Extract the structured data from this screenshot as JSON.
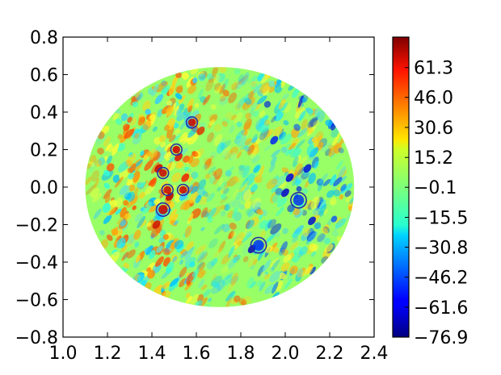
{
  "chart_data": {
    "type": "heatmap",
    "title": "",
    "xlabel": "",
    "ylabel": "",
    "xlim": [
      1.0,
      2.4
    ],
    "ylim": [
      -0.8,
      0.8
    ],
    "grid": false,
    "x_ticks": [
      "1.0",
      "1.2",
      "1.4",
      "1.6",
      "1.8",
      "2.0",
      "2.2",
      "2.4"
    ],
    "y_ticks": [
      "0.8",
      "0.6",
      "0.4",
      "0.2",
      "0.0",
      "−0.2",
      "−0.4",
      "−0.6",
      "−0.8"
    ],
    "x_tick_values": [
      1.0,
      1.2,
      1.4,
      1.6,
      1.8,
      2.0,
      2.2,
      2.4
    ],
    "y_tick_values": [
      0.8,
      0.6,
      0.4,
      0.2,
      0.0,
      -0.2,
      -0.4,
      -0.6,
      -0.8
    ],
    "colorbar": {
      "colormap": "jet",
      "range": [
        -76.9,
        76.9
      ],
      "tick_labels": [
        "61.3",
        "46.0",
        "30.6",
        "15.2",
        "−0.1",
        "−15.5",
        "−30.8",
        "−46.2",
        "−61.6",
        "−76.9"
      ],
      "tick_values": [
        61.3,
        46.0,
        30.6,
        15.2,
        -0.1,
        -15.5,
        -30.8,
        -46.2,
        -61.6,
        -76.9
      ]
    },
    "domain": {
      "shape": "disk",
      "center": [
        1.705,
        0.0
      ],
      "radius_x": 0.605,
      "radius_y": 0.64
    },
    "background_color": "#99ff66",
    "circle_color": "#2a2aa8",
    "marked_points": [
      {
        "x": 1.58,
        "y": 0.345,
        "radius": 0.025,
        "kind": "positive"
      },
      {
        "x": 1.51,
        "y": 0.2,
        "radius": 0.025,
        "kind": "positive"
      },
      {
        "x": 1.45,
        "y": 0.075,
        "radius": 0.025,
        "kind": "positive"
      },
      {
        "x": 1.47,
        "y": -0.015,
        "radius": 0.025,
        "kind": "positive"
      },
      {
        "x": 1.54,
        "y": -0.015,
        "radius": 0.025,
        "kind": "positive"
      },
      {
        "x": 1.45,
        "y": -0.12,
        "radius": 0.03,
        "kind": "positive"
      },
      {
        "x": 2.06,
        "y": -0.07,
        "radius": 0.035,
        "kind": "negative"
      },
      {
        "x": 1.88,
        "y": -0.31,
        "radius": 0.035,
        "kind": "negative"
      }
    ]
  }
}
